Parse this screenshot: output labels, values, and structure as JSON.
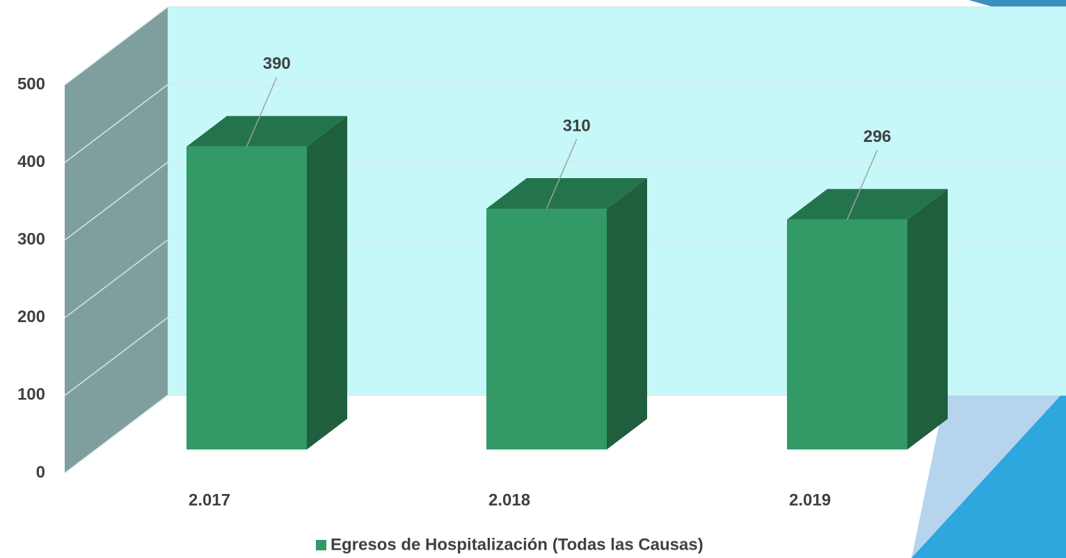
{
  "chart_data": {
    "type": "bar3d",
    "categories": [
      "2.017",
      "2.018",
      "2.019"
    ],
    "series": [
      {
        "name": "Egresos de Hospitalización (Todas las Causas)",
        "color": "#339966",
        "values": [
          390,
          310,
          296
        ]
      }
    ],
    "ylim": [
      0,
      500
    ],
    "yticks": [
      0,
      100,
      200,
      300,
      400,
      500
    ],
    "grid": true,
    "legend": "bottom"
  }
}
